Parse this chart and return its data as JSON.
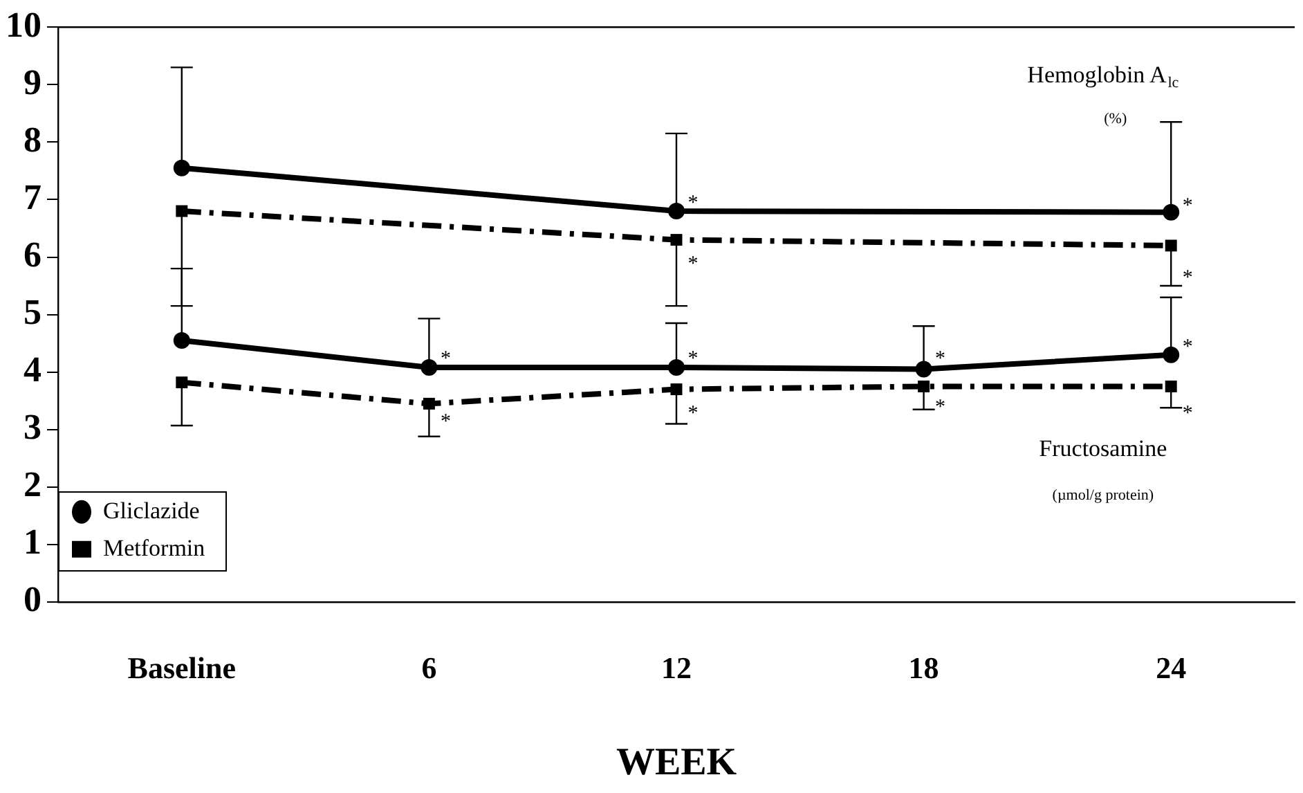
{
  "chart_data": {
    "type": "line",
    "xlabel": "WEEK",
    "categories": [
      "Baseline",
      "6",
      "12",
      "18",
      "24"
    ],
    "ylim": [
      0,
      10
    ],
    "yticks": [
      0,
      1,
      2,
      3,
      4,
      5,
      6,
      7,
      8,
      9,
      10
    ],
    "grid": false,
    "legend": "bottom left",
    "series": [
      {
        "color": "#000000",
        "marker": "circle",
        "line_style": "solid",
        "values": [
          7.55,
          null,
          6.8,
          null,
          6.78
        ],
        "errors": [
          [
            7.55,
            9.3
          ],
          null,
          [
            6.8,
            8.15
          ],
          null,
          [
            6.78,
            8.35
          ]
        ]
      },
      {
        "color": "#000000",
        "marker": "square",
        "line_style": "dashed",
        "values": [
          6.8,
          null,
          6.3,
          null,
          6.2
        ],
        "errors": [
          [
            5.15,
            6.8
          ],
          null,
          [
            5.15,
            6.3
          ],
          null,
          [
            5.5,
            6.2
          ]
        ]
      },
      {
        "name": "Gliclazide",
        "color": "#000000",
        "marker": "circle",
        "line_style": "solid",
        "values": [
          4.55,
          4.08,
          4.08,
          4.05,
          4.3
        ],
        "errors": [
          [
            4.55,
            5.8
          ],
          [
            4.08,
            4.93
          ],
          [
            4.08,
            4.85
          ],
          [
            4.05,
            4.8
          ],
          [
            4.3,
            5.3
          ]
        ]
      },
      {
        "name": "Metformin",
        "color": "#000000",
        "marker": "square",
        "line_style": "dashed",
        "values": [
          3.82,
          3.45,
          3.7,
          3.75,
          3.75
        ],
        "errors": [
          [
            3.07,
            3.82
          ],
          [
            2.88,
            3.45
          ],
          [
            3.1,
            3.7
          ],
          [
            3.35,
            3.75
          ],
          [
            3.38,
            3.75
          ]
        ]
      }
    ],
    "annotations": [
      "Hemoglobin A$_{lc}$",
      "(%)",
      "Fructosamine",
      "(µmol/g protein)",
      {
        "text": "*",
        "x": "12",
        "y": 7.0
      },
      {
        "text": "*",
        "x": "24",
        "y": 6.95
      },
      {
        "text": "*",
        "x": "12",
        "y": 5.95
      },
      {
        "text": "*",
        "x": "24",
        "y": 5.7
      },
      {
        "text": "*",
        "x": "6",
        "y": 4.3
      },
      {
        "text": "*",
        "x": "12",
        "y": 4.3
      },
      {
        "text": "*",
        "x": "18",
        "y": 4.3
      },
      {
        "text": "*",
        "x": "24",
        "y": 4.5
      },
      {
        "text": "*",
        "x": "6",
        "y": 3.2
      },
      {
        "text": "*",
        "x": "12",
        "y": 3.35
      },
      {
        "text": "*",
        "x": "18",
        "y": 3.45
      },
      {
        "text": "*",
        "x": "24",
        "y": 3.35
      }
    ]
  }
}
